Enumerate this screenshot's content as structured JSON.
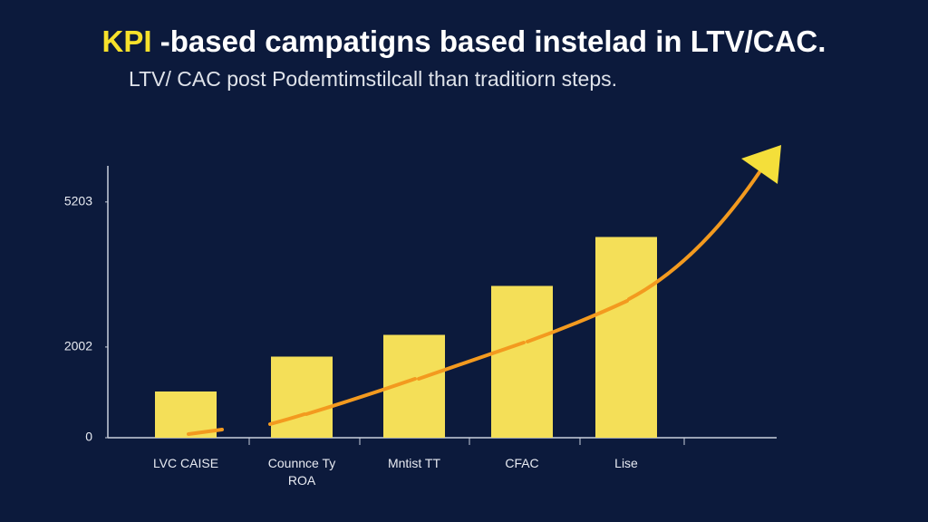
{
  "chart_data": {
    "type": "bar",
    "title": {
      "highlight": "KPI",
      "rest": "-based campatigns based instelad in LTV/CAC."
    },
    "subtitle": "LTV/ CAC post Podemtimstilcall than traditiorn steps.",
    "categories": [
      "LVC CAISE",
      "Counnce Ty ROA",
      "Mntist TT",
      "CFAC",
      "Lise"
    ],
    "values": [
      1020,
      1790,
      2270,
      3350,
      4430
    ],
    "color": "#f4df58",
    "ylim": [
      0,
      6000
    ],
    "yticks": [
      0,
      2002,
      5203
    ],
    "grid": false
  }
}
